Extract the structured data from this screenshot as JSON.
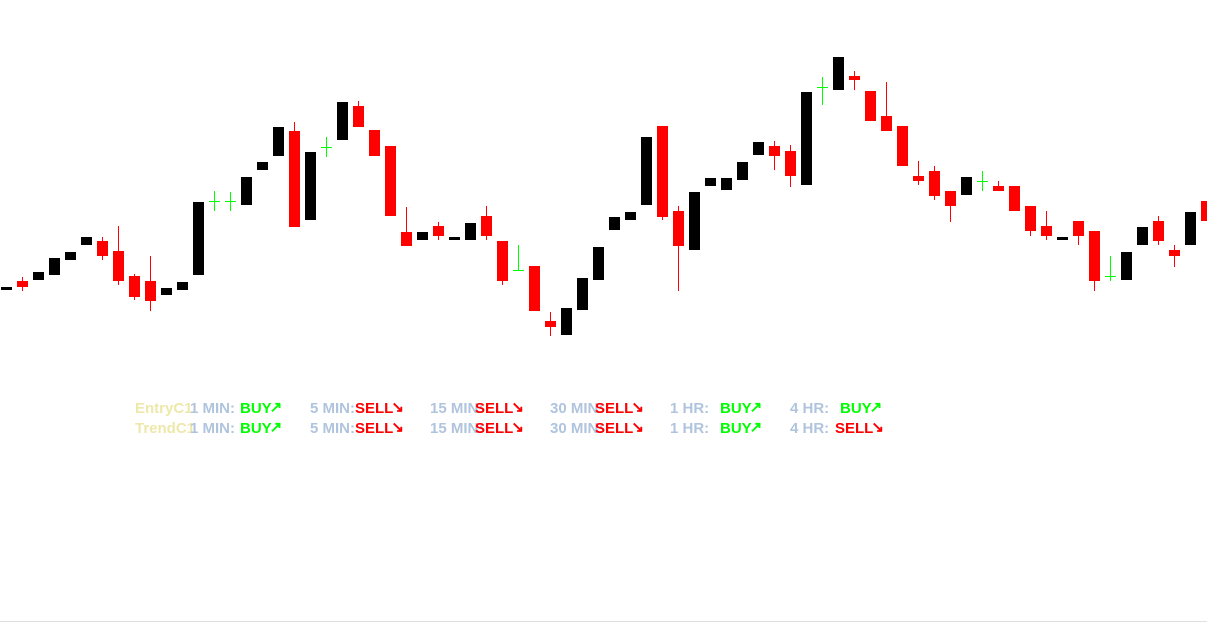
{
  "chart_data": {
    "type": "candlestick",
    "ylim": [
      0,
      624
    ],
    "up_color": "#000000",
    "down_color": "#ff0000",
    "doji_color": "#00ff00",
    "series": [
      {
        "values": [
          [
            334,
            337,
            334,
            337
          ],
          [
            343,
            347,
            333,
            337
          ],
          [
            344,
            352,
            344,
            352
          ],
          [
            349,
            366,
            349,
            366
          ],
          [
            364,
            372,
            364,
            372
          ],
          [
            379,
            387,
            379,
            387
          ],
          [
            383,
            387,
            364,
            368
          ],
          [
            373,
            398,
            339,
            343
          ],
          [
            348,
            350,
            324,
            327
          ],
          [
            343,
            368,
            313,
            323
          ],
          [
            329,
            336,
            329,
            336
          ],
          [
            334,
            342,
            334,
            342
          ],
          [
            349,
            422,
            349,
            422
          ],
          [
            423,
            433,
            413,
            423
          ],
          [
            423,
            432,
            413,
            423
          ],
          [
            419,
            447,
            419,
            447
          ],
          [
            454,
            462,
            454,
            462
          ],
          [
            468,
            497,
            468,
            497
          ],
          [
            493,
            502,
            397,
            397
          ],
          [
            404,
            472,
            404,
            472
          ],
          [
            477,
            487,
            467,
            477
          ],
          [
            484,
            522,
            484,
            522
          ],
          [
            518,
            523,
            497,
            497
          ],
          [
            494,
            494,
            468,
            468
          ],
          [
            478,
            478,
            408,
            408
          ],
          [
            392,
            417,
            378,
            378
          ],
          [
            384,
            392,
            384,
            392
          ],
          [
            398,
            402,
            384,
            388
          ],
          [
            384,
            387,
            384,
            387
          ],
          [
            384,
            401,
            384,
            401
          ],
          [
            408,
            418,
            384,
            388
          ],
          [
            383,
            383,
            339,
            343
          ],
          [
            354,
            379,
            353,
            354
          ],
          [
            358,
            358,
            313,
            313
          ],
          [
            303,
            312,
            288,
            297
          ],
          [
            289,
            316,
            289,
            316
          ],
          [
            314,
            346,
            314,
            346
          ],
          [
            344,
            377,
            344,
            377
          ],
          [
            394,
            407,
            394,
            407
          ],
          [
            404,
            412,
            404,
            412
          ],
          [
            419,
            487,
            419,
            487
          ],
          [
            498,
            498,
            404,
            407
          ],
          [
            413,
            418,
            333,
            378
          ],
          [
            374,
            432,
            374,
            432
          ],
          [
            438,
            446,
            438,
            446
          ],
          [
            434,
            446,
            434,
            446
          ],
          [
            444,
            462,
            444,
            462
          ],
          [
            469,
            482,
            469,
            482
          ],
          [
            478,
            483,
            454,
            468
          ],
          [
            473,
            479,
            437,
            448
          ],
          [
            439,
            532,
            439,
            532
          ],
          [
            537,
            547,
            519,
            537
          ],
          [
            534,
            567,
            534,
            567
          ],
          [
            548,
            553,
            534,
            544
          ],
          [
            533,
            533,
            503,
            503
          ],
          [
            508,
            542,
            493,
            493
          ],
          [
            498,
            498,
            458,
            458
          ],
          [
            448,
            463,
            439,
            443
          ],
          [
            453,
            458,
            424,
            428
          ],
          [
            433,
            433,
            402,
            418
          ],
          [
            429,
            447,
            429,
            447
          ],
          [
            443,
            453,
            433,
            443
          ],
          [
            438,
            443,
            433,
            433
          ],
          [
            438,
            438,
            413,
            413
          ],
          [
            418,
            418,
            388,
            393
          ],
          [
            398,
            413,
            384,
            388
          ],
          [
            384,
            387,
            384,
            387
          ],
          [
            403,
            403,
            379,
            388
          ],
          [
            393,
            393,
            333,
            343
          ],
          [
            348,
            368,
            343,
            348
          ],
          [
            344,
            372,
            344,
            372
          ],
          [
            379,
            397,
            379,
            397
          ],
          [
            403,
            408,
            379,
            383
          ],
          [
            374,
            379,
            357,
            368
          ],
          [
            379,
            412,
            379,
            412
          ],
          [
            423,
            423,
            403,
            403
          ]
        ]
      }
    ]
  },
  "signals": {
    "label_color": "#eee8aa",
    "timeframe_color": "#b0c4de",
    "timeframes": [
      "1 MIN:",
      "5 MIN:",
      "15 MIN:",
      "30 MIN:",
      "1 HR:",
      "4 HR:"
    ],
    "rows": [
      {
        "label": "EntryC1",
        "cells": [
          {
            "text": "BUY",
            "arrow": "↗",
            "color": "#00ff00"
          },
          {
            "text": "SELL",
            "arrow": "↘",
            "color": "#ff0000"
          },
          {
            "text": "SELL",
            "arrow": "↘",
            "color": "#ff0000"
          },
          {
            "text": "SELL",
            "arrow": "↘",
            "color": "#ff0000"
          },
          {
            "text": "BUY",
            "arrow": "↗",
            "color": "#00ff00"
          },
          {
            "text": "BUY",
            "arrow": "↗",
            "color": "#00ff00"
          }
        ]
      },
      {
        "label": "TrendC1",
        "cells": [
          {
            "text": "BUY",
            "arrow": "↗",
            "color": "#00ff00"
          },
          {
            "text": "SELL",
            "arrow": "↘",
            "color": "#ff0000"
          },
          {
            "text": "SELL",
            "arrow": "↘",
            "color": "#ff0000"
          },
          {
            "text": "SELL",
            "arrow": "↘",
            "color": "#ff0000"
          },
          {
            "text": "BUY",
            "arrow": "↗",
            "color": "#00ff00"
          },
          {
            "text": "SELL",
            "arrow": "↘",
            "color": "#ff0000"
          }
        ]
      }
    ]
  }
}
